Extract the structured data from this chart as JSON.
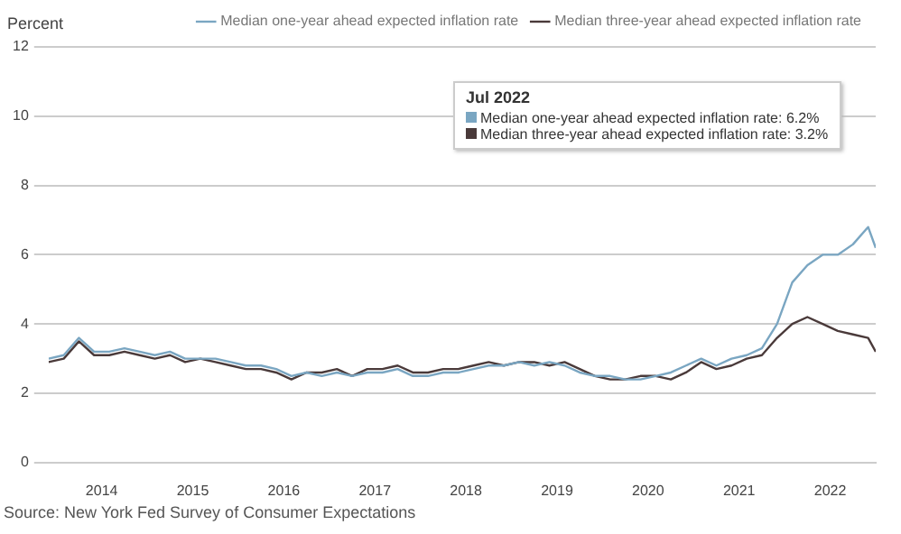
{
  "chart_data": {
    "type": "line",
    "ylabel": "Percent",
    "x": [
      "2013-06",
      "2013-08",
      "2013-10",
      "2013-12",
      "2014-02",
      "2014-04",
      "2014-06",
      "2014-08",
      "2014-10",
      "2014-12",
      "2015-02",
      "2015-04",
      "2015-06",
      "2015-08",
      "2015-10",
      "2015-12",
      "2016-02",
      "2016-04",
      "2016-06",
      "2016-08",
      "2016-10",
      "2016-12",
      "2017-02",
      "2017-04",
      "2017-06",
      "2017-08",
      "2017-10",
      "2017-12",
      "2018-02",
      "2018-04",
      "2018-06",
      "2018-08",
      "2018-10",
      "2018-12",
      "2019-02",
      "2019-04",
      "2019-06",
      "2019-08",
      "2019-10",
      "2019-12",
      "2020-02",
      "2020-04",
      "2020-06",
      "2020-08",
      "2020-10",
      "2020-12",
      "2021-02",
      "2021-04",
      "2021-06",
      "2021-08",
      "2021-10",
      "2021-12",
      "2022-02",
      "2022-04",
      "2022-06",
      "2022-07"
    ],
    "series": [
      {
        "name": "Median one-year ahead expected inflation rate",
        "color": "#7aa6c2",
        "values": [
          3.0,
          3.1,
          3.6,
          3.2,
          3.2,
          3.3,
          3.2,
          3.1,
          3.2,
          3.0,
          3.0,
          3.0,
          2.9,
          2.8,
          2.8,
          2.7,
          2.5,
          2.6,
          2.5,
          2.6,
          2.5,
          2.6,
          2.6,
          2.7,
          2.5,
          2.5,
          2.6,
          2.6,
          2.7,
          2.8,
          2.8,
          2.9,
          2.8,
          2.9,
          2.8,
          2.6,
          2.5,
          2.5,
          2.4,
          2.4,
          2.5,
          2.6,
          2.8,
          3.0,
          2.8,
          3.0,
          3.1,
          3.3,
          4.0,
          5.2,
          5.7,
          6.0,
          6.0,
          6.3,
          6.8,
          6.2
        ]
      },
      {
        "name": "Median three-year ahead expected inflation rate",
        "color": "#4a3a3a",
        "values": [
          2.9,
          3.0,
          3.5,
          3.1,
          3.1,
          3.2,
          3.1,
          3.0,
          3.1,
          2.9,
          3.0,
          2.9,
          2.8,
          2.7,
          2.7,
          2.6,
          2.4,
          2.6,
          2.6,
          2.7,
          2.5,
          2.7,
          2.7,
          2.8,
          2.6,
          2.6,
          2.7,
          2.7,
          2.8,
          2.9,
          2.8,
          2.9,
          2.9,
          2.8,
          2.9,
          2.7,
          2.5,
          2.4,
          2.4,
          2.5,
          2.5,
          2.4,
          2.6,
          2.9,
          2.7,
          2.8,
          3.0,
          3.1,
          3.6,
          4.0,
          4.2,
          4.0,
          3.8,
          3.7,
          3.6,
          3.2
        ]
      }
    ],
    "xlim": [
      "2013-06",
      "2022-07"
    ],
    "xticks": [
      {
        "value": "2014",
        "label": "2014"
      },
      {
        "value": "2015",
        "label": "2015"
      },
      {
        "value": "2016",
        "label": "2016"
      },
      {
        "value": "2017",
        "label": "2017"
      },
      {
        "value": "2018",
        "label": "2018"
      },
      {
        "value": "2019",
        "label": "2019"
      },
      {
        "value": "2020",
        "label": "2020"
      },
      {
        "value": "2021",
        "label": "2021"
      },
      {
        "value": "2022",
        "label": "2022"
      }
    ],
    "ylim": [
      0,
      12
    ],
    "yticks": [
      0,
      2,
      4,
      6,
      8,
      10,
      12
    ],
    "grid": "y",
    "legend": "top right",
    "marker": "none",
    "line_style": "solid",
    "annotations": [
      "Jul 2022",
      "Median one-year ahead expected inflation rate: 6.2%",
      "Median three-year ahead expected inflation rate: 3.2%",
      "Source: New York Fed Survey of Consumer Expectations"
    ]
  }
}
